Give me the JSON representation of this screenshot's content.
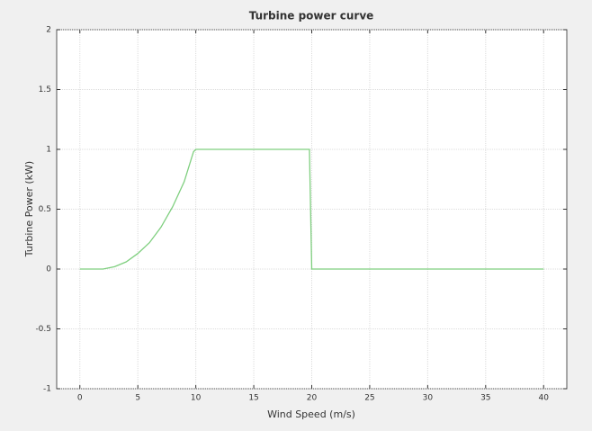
{
  "chart_data": {
    "type": "line",
    "title": "Turbine power curve",
    "x_label": "Wind Speed (m/s)",
    "y_label": "Turbine Power (kW)",
    "x": [
      0,
      2,
      3,
      4,
      5,
      6,
      7,
      8,
      9,
      9.8,
      10,
      19.8,
      20,
      40
    ],
    "values": [
      0,
      0,
      0.02,
      0.06,
      0.13,
      0.22,
      0.35,
      0.52,
      0.73,
      0.98,
      1,
      1,
      0,
      0
    ],
    "color": "#7fcf7f",
    "xlim": [
      -2,
      42
    ],
    "ylim": [
      -1,
      2
    ],
    "xticks": [
      0,
      5,
      10,
      15,
      20,
      25,
      30,
      35,
      40
    ],
    "yticks": [
      -1,
      -0.5,
      0,
      0.5,
      1,
      1.5,
      2
    ],
    "grid": true
  }
}
